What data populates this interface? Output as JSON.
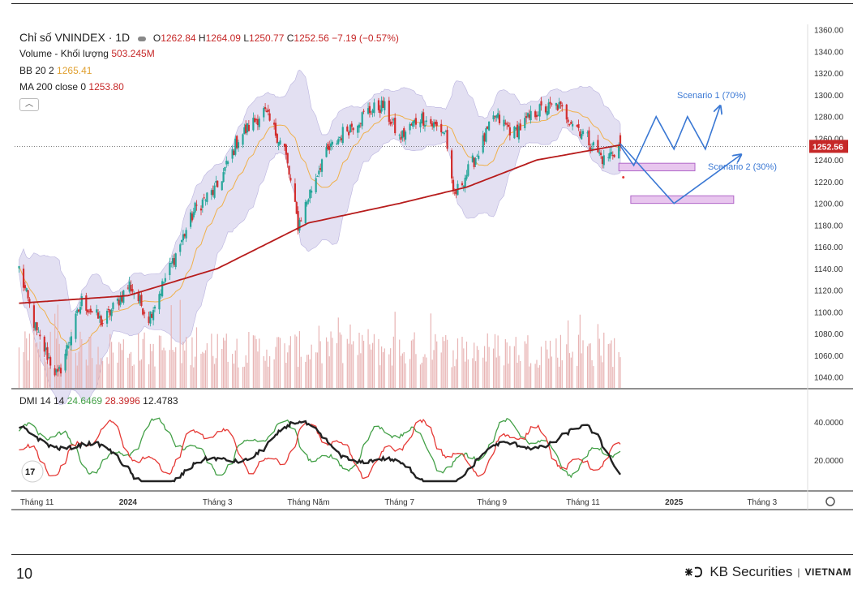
{
  "header": {
    "symbol_title": "Chỉ số VNINDEX · 1D",
    "ohlc": {
      "o_label": "O",
      "o": "1262.84",
      "h_label": "H",
      "h": "1264.09",
      "l_label": "L",
      "l": "1250.77",
      "c_label": "C",
      "c": "1252.56",
      "change": "−7.19 (−0.57%)"
    },
    "volume_label": "Volume - Khối lượng",
    "volume_value": "503.245M",
    "bb_label": "BB 20 2",
    "bb_value": "1265.41",
    "ma_label": "MA 200 close 0",
    "ma_value": "1253.80",
    "dmi_label": "DMI 14 14",
    "dmi_plus": "24.6469",
    "dmi_minus": "28.3996",
    "adx": "12.4783",
    "last_price_tag": "1252.56"
  },
  "annotations": {
    "scenario1": "Scenario 1 (70%)",
    "scenario2": "Scenario 2 (30%)"
  },
  "footer": {
    "page_number": "10",
    "brand": "KB Securities",
    "brand_suffix": "VIETNAM"
  },
  "colors": {
    "up": "#26a69a",
    "down": "#d32f2f",
    "ma200": "#b71c1c",
    "bb_fill": "#d9d5ee",
    "bb_mid": "#f0b04a",
    "scenario": "#3a78d4",
    "zone_fill": "#e8c6ee",
    "zone_stroke": "#b066c8",
    "dmi_plus": "#43a047",
    "dmi_minus": "#e53935",
    "adx": "#222222",
    "volume": "#e8b4b4"
  },
  "chart_data": [
    {
      "type": "candlestick",
      "title": "Chỉ số VNINDEX · 1D",
      "y_ticks": [
        1040,
        1060,
        1080,
        1100,
        1120,
        1140,
        1160,
        1180,
        1200,
        1220,
        1240,
        1260,
        1280,
        1300,
        1320,
        1340,
        1360
      ],
      "ylim": [
        1030,
        1365
      ],
      "x_ticks": [
        "Tháng 11",
        "2024",
        "Tháng 3",
        "Tháng Năm",
        "Tháng 7",
        "Tháng 9",
        "Tháng 11",
        "2025",
        "Tháng 3"
      ],
      "close_key_points": {
        "dates": [
          "2023-10-20",
          "2023-11-01",
          "2023-11-15",
          "2023-12-01",
          "2023-12-15",
          "2024-01-02",
          "2024-01-15",
          "2024-02-01",
          "2024-02-15",
          "2024-03-01",
          "2024-03-15",
          "2024-04-01",
          "2024-04-15",
          "2024-04-24",
          "2024-05-10",
          "2024-05-24",
          "2024-06-10",
          "2024-06-20",
          "2024-07-01",
          "2024-07-15",
          "2024-08-01",
          "2024-08-06",
          "2024-08-20",
          "2024-09-03",
          "2024-09-16",
          "2024-10-01",
          "2024-10-15",
          "2024-11-01",
          "2024-11-15",
          "2024-11-26"
        ],
        "close": [
          1140,
          1080,
          1040,
          1110,
          1090,
          1125,
          1095,
          1150,
          1195,
          1215,
          1260,
          1285,
          1250,
          1180,
          1240,
          1265,
          1285,
          1290,
          1260,
          1280,
          1265,
          1205,
          1240,
          1280,
          1265,
          1285,
          1290,
          1265,
          1240,
          1252.56
        ]
      },
      "ma200_key_points": {
        "dates": [
          "2023-10-20",
          "2024-01-01",
          "2024-03-01",
          "2024-05-01",
          "2024-07-01",
          "2024-08-15",
          "2024-10-01",
          "2024-11-26"
        ],
        "values": [
          1108,
          1115,
          1140,
          1182,
          1200,
          1215,
          1240,
          1253.8
        ]
      },
      "last_close": 1252.56,
      "support_zones": [
        {
          "from": "2024-11-25",
          "to": "2025-01-15",
          "y_low": 1230,
          "y_high": 1237
        },
        {
          "from": "2024-12-03",
          "to": "2025-02-10",
          "y_low": 1200,
          "y_high": 1207
        }
      ],
      "scenarios": [
        {
          "name": "Scenario 1 (70%)",
          "path_dates": [
            "2024-11-26",
            "2024-12-05",
            "2024-12-20",
            "2025-01-01",
            "2025-01-10",
            "2025-01-22",
            "2025-02-01"
          ],
          "path_values": [
            1253,
            1235,
            1280,
            1250,
            1280,
            1250,
            1290
          ]
        },
        {
          "name": "Scenario 2 (30%)",
          "path_dates": [
            "2024-11-26",
            "2025-01-01",
            "2025-02-15"
          ],
          "path_values": [
            1255,
            1200,
            1245
          ]
        }
      ]
    },
    {
      "type": "bar",
      "title": "Volume - Khối lượng",
      "last_value": "503.245M"
    },
    {
      "type": "line",
      "title": "DMI 14 14",
      "y_ticks": [
        20,
        40
      ],
      "ylim": [
        6,
        55
      ],
      "series": [
        {
          "name": "+DI",
          "last": 24.6469
        },
        {
          "name": "-DI",
          "last": 28.3996
        },
        {
          "name": "ADX",
          "last": 12.4783
        }
      ]
    }
  ]
}
